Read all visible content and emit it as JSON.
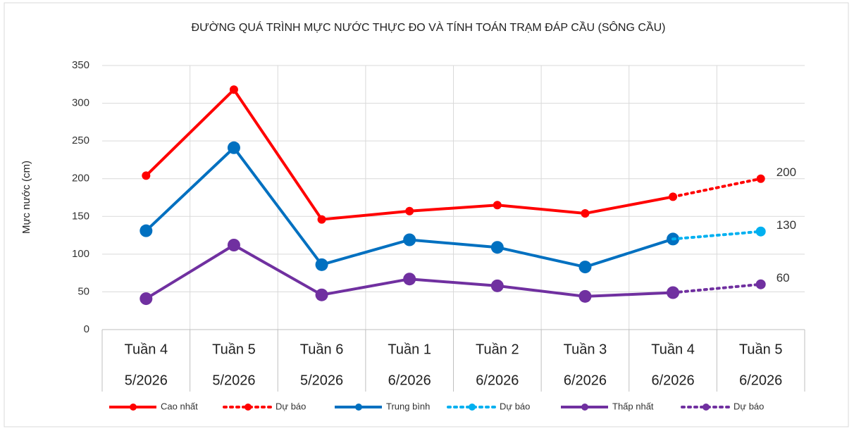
{
  "chart_data": {
    "type": "line",
    "title": "ĐƯỜNG QUÁ TRÌNH MỰC NƯỚC THỰC ĐO VÀ TÍNH TOÁN TRẠM ĐÁP CẦU (SÔNG CẦU)",
    "y_label": "Mực nước (cm)",
    "categories": [
      {
        "week": "Tuần 4",
        "month": "5/2026"
      },
      {
        "week": "Tuần 5",
        "month": "5/2026"
      },
      {
        "week": "Tuần 6",
        "month": "5/2026"
      },
      {
        "week": "Tuần 1",
        "month": "6/2026"
      },
      {
        "week": "Tuần 2",
        "month": "6/2026"
      },
      {
        "week": "Tuần 3",
        "month": "6/2026"
      },
      {
        "week": "Tuần 4",
        "month": "6/2026"
      },
      {
        "week": "Tuần 5",
        "month": "6/2026"
      }
    ],
    "series": [
      {
        "name": "Cao nhất",
        "color": "#ff0000",
        "dash": "solid",
        "marker": "small",
        "values": [
          204,
          318,
          146,
          157,
          165,
          154,
          176,
          null
        ]
      },
      {
        "name": "Dự báo",
        "color": "#ff0000",
        "dash": "dotted",
        "marker": "small",
        "label_last": true,
        "values": [
          null,
          null,
          null,
          null,
          null,
          null,
          176,
          200
        ]
      },
      {
        "name": "Trung bình",
        "color": "#0070c0",
        "dash": "solid",
        "marker": "large",
        "values": [
          131,
          241,
          86,
          119,
          109,
          83,
          120,
          null
        ]
      },
      {
        "name": "Dự báo",
        "color": "#00b0f0",
        "dash": "dotted",
        "marker": "medium",
        "label_last": true,
        "values": [
          null,
          null,
          null,
          null,
          null,
          null,
          120,
          130
        ]
      },
      {
        "name": "Thấp nhất",
        "color": "#7030a0",
        "dash": "solid",
        "marker": "large",
        "values": [
          41,
          112,
          46,
          67,
          58,
          44,
          49,
          null
        ]
      },
      {
        "name": "Dự báo",
        "color": "#7030a0",
        "dash": "dotted",
        "marker": "medium",
        "label_last": true,
        "values": [
          null,
          null,
          null,
          null,
          null,
          null,
          49,
          60
        ]
      }
    ],
    "ylim": [
      0,
      350
    ],
    "yticks": [
      0,
      50,
      100,
      150,
      200,
      250,
      300,
      350
    ],
    "grid": true
  }
}
